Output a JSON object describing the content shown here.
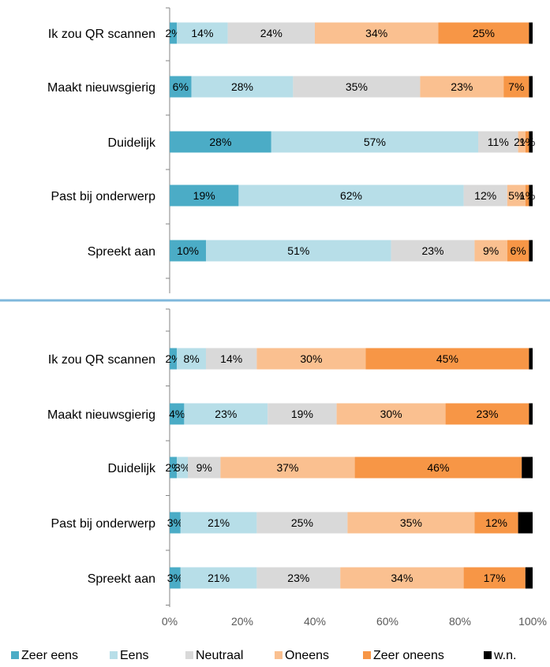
{
  "chart_data": {
    "type": "bar",
    "orientation": "horizontal",
    "stacked": true,
    "percent": true,
    "xlim": [
      0,
      100
    ],
    "x_ticks": [
      "0%",
      "20%",
      "40%",
      "60%",
      "80%",
      "100%"
    ],
    "legend_position": "bottom",
    "legend": [
      "Zeer eens",
      "Eens",
      "Neutraal",
      "Oneens",
      "Zeer oneens",
      "w.n."
    ],
    "colors": [
      "#4bacc6",
      "#b7dee8",
      "#d9d9d9",
      "#fac090",
      "#f79646",
      "#000000"
    ],
    "panels": [
      {
        "categories": [
          "Ik zou QR scannen",
          "Maakt nieuwsgierig",
          "Duidelijk",
          "Past bij onderwerp",
          "Spreekt aan"
        ],
        "series": [
          {
            "name": "Zeer eens",
            "values": [
              2,
              6,
              28,
              19,
              10
            ]
          },
          {
            "name": "Eens",
            "values": [
              14,
              28,
              57,
              62,
              51
            ]
          },
          {
            "name": "Neutraal",
            "values": [
              24,
              35,
              11,
              12,
              23
            ]
          },
          {
            "name": "Oneens",
            "values": [
              34,
              23,
              2,
              5,
              9
            ]
          },
          {
            "name": "Zeer oneens",
            "values": [
              25,
              7,
              1,
              1,
              6
            ]
          },
          {
            "name": "w.n.",
            "values": [
              1,
              1,
              1,
              1,
              1
            ]
          }
        ],
        "data_labels": [
          [
            "2%",
            "14%",
            "24%",
            "34%",
            "25%",
            ""
          ],
          [
            "6%",
            "28%",
            "35%",
            "23%",
            "7%",
            ""
          ],
          [
            "28%",
            "57%",
            "11%",
            "2%",
            "1%",
            ""
          ],
          [
            "19%",
            "62%",
            "12%",
            "5%",
            "1%",
            ""
          ],
          [
            "10%",
            "51%",
            "23%",
            "9%",
            "6%",
            ""
          ]
        ]
      },
      {
        "categories": [
          "Ik zou QR scannen",
          "Maakt nieuwsgierig",
          "Duidelijk",
          "Past bij onderwerp",
          "Spreekt aan"
        ],
        "series": [
          {
            "name": "Zeer eens",
            "values": [
              2,
              4,
              2,
              3,
              3
            ]
          },
          {
            "name": "Eens",
            "values": [
              8,
              23,
              3,
              21,
              21
            ]
          },
          {
            "name": "Neutraal",
            "values": [
              14,
              19,
              9,
              25,
              23
            ]
          },
          {
            "name": "Oneens",
            "values": [
              30,
              30,
              37,
              35,
              34
            ]
          },
          {
            "name": "Zeer oneens",
            "values": [
              45,
              23,
              46,
              12,
              17
            ]
          },
          {
            "name": "w.n.",
            "values": [
              1,
              1,
              3,
              4,
              2
            ]
          }
        ],
        "data_labels": [
          [
            "2%",
            "8%",
            "14%",
            "30%",
            "45%",
            ""
          ],
          [
            "4%",
            "23%",
            "19%",
            "30%",
            "23%",
            ""
          ],
          [
            "2%",
            "3%",
            "9%",
            "37%",
            "46%",
            ""
          ],
          [
            "3%",
            "21%",
            "25%",
            "35%",
            "12%",
            ""
          ],
          [
            "3%",
            "21%",
            "23%",
            "34%",
            "17%",
            ""
          ]
        ]
      }
    ]
  }
}
